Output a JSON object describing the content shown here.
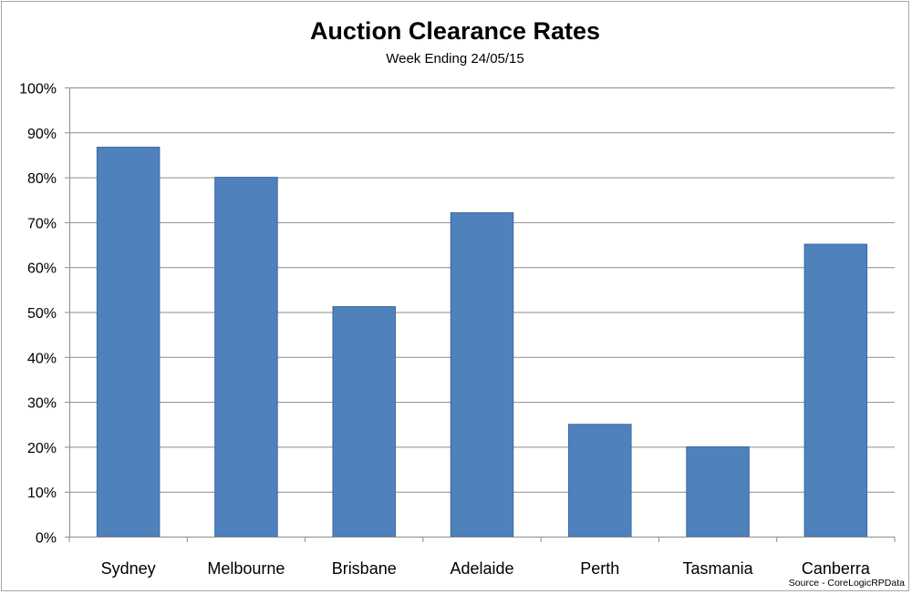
{
  "chart_data": {
    "type": "bar",
    "title": "Auction Clearance Rates",
    "subtitle": "Week Ending 24/05/15",
    "categories": [
      "Sydney",
      "Melbourne",
      "Brisbane",
      "Adelaide",
      "Perth",
      "Tasmania",
      "Canberra"
    ],
    "values": [
      86.7,
      80.0,
      51.2,
      72.1,
      25.0,
      20.0,
      65.1
    ],
    "ylim": [
      0,
      100
    ],
    "yticks": [
      "0%",
      "10%",
      "20%",
      "30%",
      "40%",
      "50%",
      "60%",
      "70%",
      "80%",
      "90%",
      "100%"
    ],
    "xlabel": "",
    "ylabel": "",
    "grid": true,
    "legend": "none",
    "bar_color": "#4f81bd",
    "bar_edge_color": "#3a6aa3",
    "grid_color": "#8c8c8c",
    "source": "Source - CoreLogicRPData"
  }
}
